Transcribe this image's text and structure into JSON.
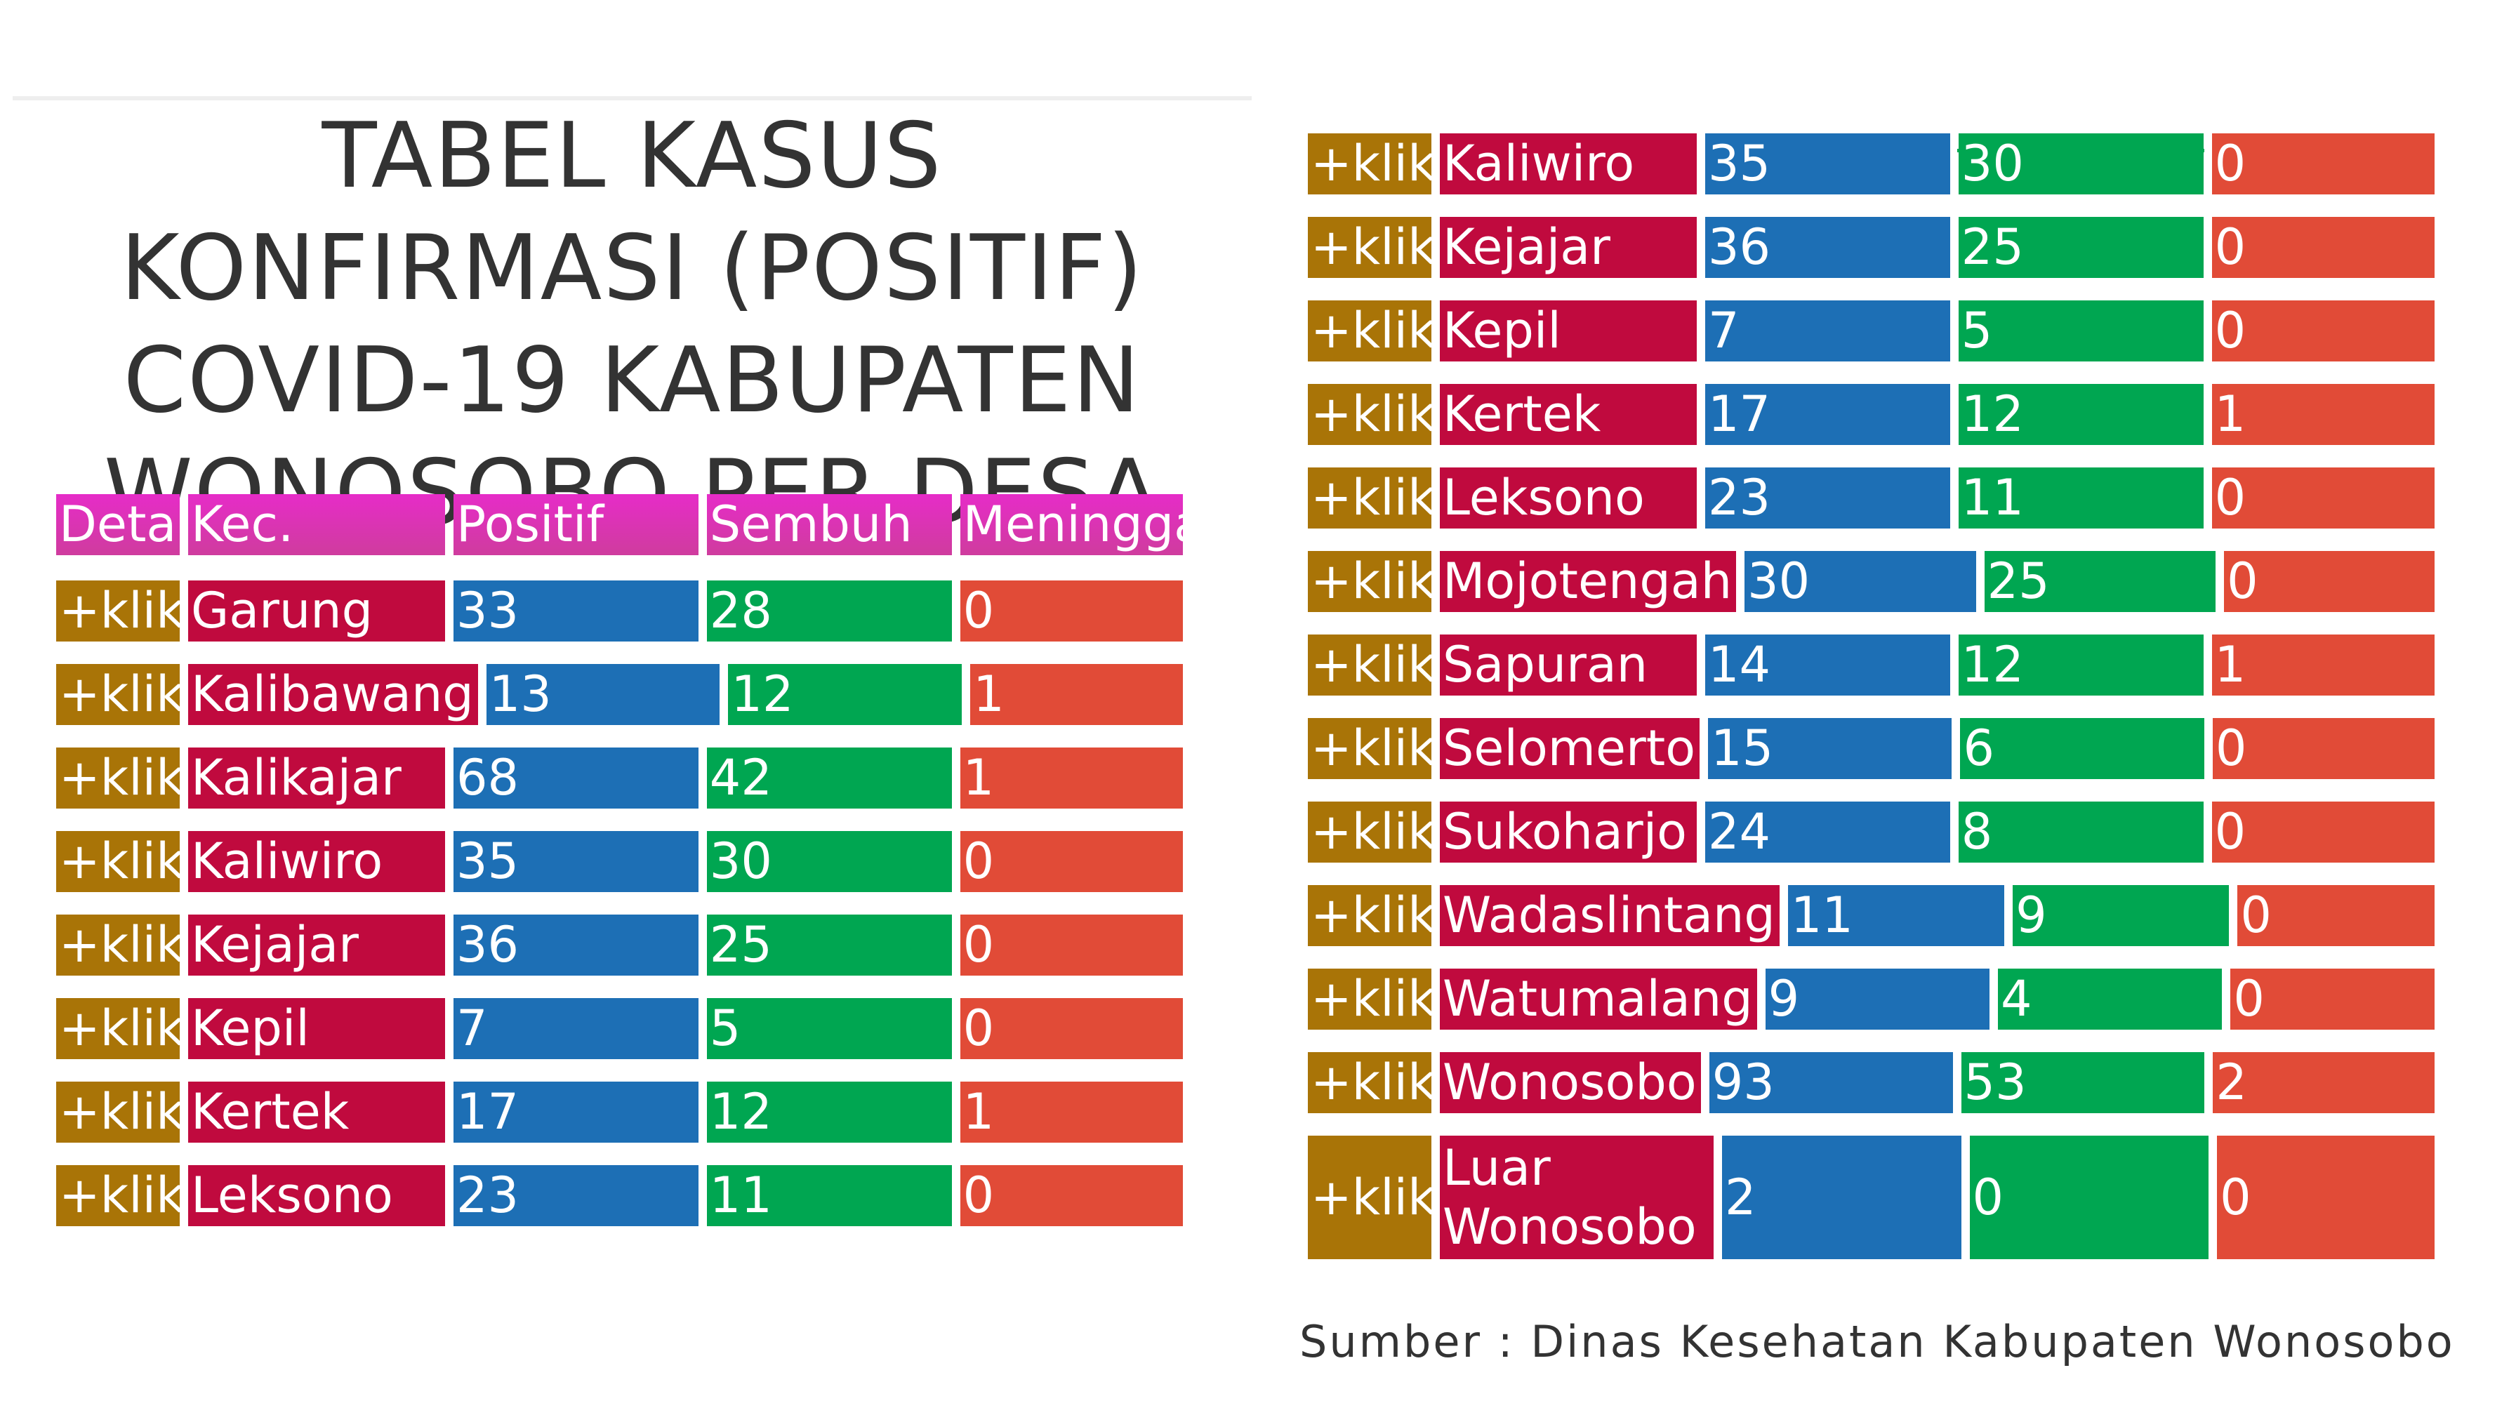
{
  "title_lines": [
    "TABEL KASUS",
    "KONFIRMASI (POSITIF)",
    "COVID-19 KABUPATEN",
    "WONOSOBO PER DESA"
  ],
  "headers": [
    "Detail",
    "Kec.",
    "Positif",
    "Sembuh",
    "Meninggal"
  ],
  "left_table": {
    "rows": [
      [
        "+klik",
        "Garung",
        33,
        28,
        0
      ],
      [
        "+klik",
        "Kalibawang",
        13,
        12,
        1
      ],
      [
        "+klik",
        "Kalikajar",
        68,
        42,
        1
      ],
      [
        "+klik",
        "Kaliwiro",
        35,
        30,
        0
      ],
      [
        "+klik",
        "Kejajar",
        36,
        25,
        0
      ],
      [
        "+klik",
        "Kepil",
        7,
        5,
        0
      ],
      [
        "+klik",
        "Kertek",
        17,
        12,
        1
      ],
      [
        "+klik",
        "Leksono",
        23,
        11,
        0
      ]
    ]
  },
  "right_table": {
    "rows": [
      [
        "+klik",
        "Kaliwiro",
        35,
        30,
        0
      ],
      [
        "+klik",
        "Kejajar",
        36,
        25,
        0
      ],
      [
        "+klik",
        "Kepil",
        7,
        5,
        0
      ],
      [
        "+klik",
        "Kertek",
        17,
        12,
        1
      ],
      [
        "+klik",
        "Leksono",
        23,
        11,
        0
      ],
      [
        "+klik",
        "Mojotengah",
        30,
        25,
        0
      ],
      [
        "+klik",
        "Sapuran",
        14,
        12,
        1
      ],
      [
        "+klik",
        "Selomerto",
        15,
        6,
        0
      ],
      [
        "+klik",
        "Sukoharjo",
        24,
        8,
        0
      ],
      [
        "+klik",
        "Wadaslintang",
        11,
        9,
        0
      ],
      [
        "+klik",
        "Watumalang",
        9,
        4,
        0
      ],
      [
        "+klik",
        "Wonosobo",
        93,
        53,
        2
      ],
      [
        "+klik",
        "Luar Wonosobo",
        2,
        0,
        0
      ]
    ]
  },
  "source": "Sumber : Dinas Kesehatan Kabupaten Wonosobo"
}
